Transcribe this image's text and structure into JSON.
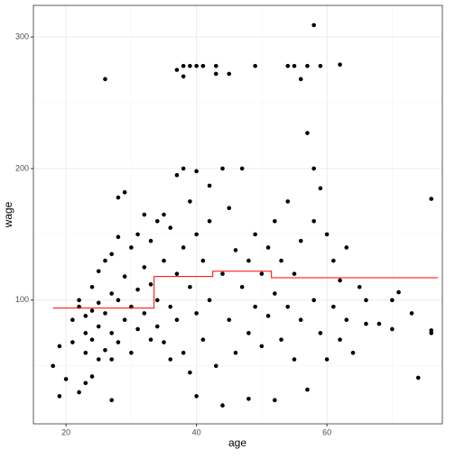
{
  "chart_data": {
    "type": "scatter",
    "xlabel": "age",
    "ylabel": "wage",
    "xlim": [
      15,
      77.7
    ],
    "ylim": [
      6,
      324
    ],
    "xticks": [
      20,
      40,
      60
    ],
    "yticks": [
      100,
      200,
      300
    ],
    "xminor": [
      30,
      50,
      70
    ],
    "yminor": [
      50,
      150,
      250
    ],
    "grid": true,
    "points": {
      "color": "#000000",
      "x": [
        18,
        19,
        19,
        20,
        21,
        21,
        22,
        22,
        22,
        23,
        23,
        23,
        23,
        24,
        24,
        24,
        24,
        25,
        25,
        25,
        25,
        26,
        26,
        26,
        26,
        27,
        27,
        27,
        27,
        27,
        28,
        28,
        28,
        28,
        29,
        29,
        29,
        30,
        30,
        30,
        31,
        31,
        31,
        32,
        32,
        32,
        33,
        33,
        33,
        34,
        34,
        34,
        35,
        35,
        35,
        36,
        36,
        36,
        37,
        37,
        37,
        37,
        38,
        38,
        38,
        38,
        38,
        39,
        39,
        39,
        39,
        40,
        40,
        40,
        40,
        40,
        41,
        41,
        41,
        42,
        42,
        42,
        43,
        43,
        43,
        44,
        44,
        44,
        45,
        45,
        45,
        46,
        46,
        47,
        47,
        48,
        48,
        48,
        49,
        49,
        49,
        50,
        50,
        51,
        51,
        52,
        52,
        52,
        53,
        53,
        54,
        54,
        54,
        55,
        55,
        55,
        56,
        56,
        56,
        57,
        57,
        57,
        58,
        58,
        58,
        58,
        59,
        59,
        59,
        60,
        60,
        61,
        61,
        62,
        62,
        62,
        63,
        63,
        64,
        65,
        66,
        66,
        68,
        70,
        70,
        71,
        73,
        74,
        76,
        76,
        76
      ],
      "values": [
        50,
        27,
        65,
        40,
        68,
        85,
        30,
        95,
        100,
        37,
        60,
        75,
        88,
        42,
        70,
        92,
        110,
        55,
        80,
        98,
        122,
        268,
        62,
        90,
        130,
        24,
        55,
        75,
        105,
        135,
        178,
        68,
        100,
        148,
        182,
        85,
        118,
        60,
        95,
        140,
        150,
        108,
        78,
        165,
        125,
        90,
        70,
        112,
        145,
        160,
        100,
        80,
        165,
        130,
        68,
        95,
        155,
        55,
        275,
        195,
        120,
        85,
        278,
        270,
        200,
        140,
        60,
        278,
        110,
        175,
        45,
        278,
        198,
        27,
        150,
        90,
        278,
        130,
        70,
        187,
        100,
        160,
        272,
        278,
        50,
        20,
        120,
        200,
        272,
        170,
        85,
        138,
        60,
        200,
        110,
        25,
        130,
        75,
        278,
        150,
        95,
        120,
        65,
        140,
        88,
        24,
        160,
        105,
        130,
        70,
        278,
        175,
        95,
        278,
        55,
        120,
        268,
        145,
        85,
        278,
        32,
        227,
        309,
        200,
        160,
        100,
        278,
        185,
        75,
        150,
        55,
        130,
        95,
        279,
        115,
        70,
        140,
        85,
        60,
        110,
        100,
        82,
        82,
        100,
        78,
        106,
        90,
        41,
        177,
        77,
        75
      ]
    },
    "step": {
      "color": "#ff0000",
      "x": [
        18,
        33.5,
        33.5,
        42.5,
        42.5,
        51.5,
        51.5,
        77
      ],
      "values": [
        94,
        94,
        118,
        118,
        122,
        122,
        117,
        117
      ]
    }
  }
}
